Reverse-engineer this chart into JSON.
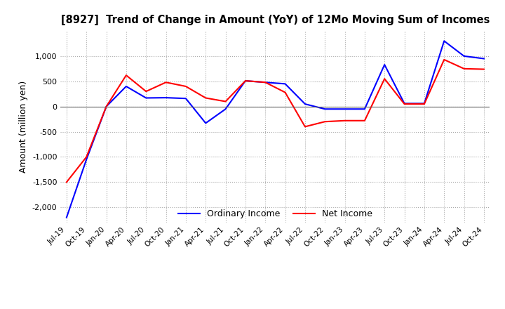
{
  "title": "[8927]  Trend of Change in Amount (YoY) of 12Mo Moving Sum of Incomes",
  "ylabel": "Amount (million yen)",
  "ylim": [
    -2300,
    1500
  ],
  "yticks": [
    -2000,
    -1500,
    -1000,
    -500,
    0,
    500,
    1000
  ],
  "legend_labels": [
    "Ordinary Income",
    "Net Income"
  ],
  "line_colors": [
    "#0000ff",
    "#ff0000"
  ],
  "background_color": "#ffffff",
  "grid_color": "#aaaaaa",
  "x_labels": [
    "Jul-19",
    "Oct-19",
    "Jan-20",
    "Apr-20",
    "Jul-20",
    "Oct-20",
    "Jan-21",
    "Apr-21",
    "Jul-21",
    "Oct-21",
    "Jan-22",
    "Apr-22",
    "Jul-22",
    "Oct-22",
    "Jan-23",
    "Apr-23",
    "Jul-23",
    "Oct-23",
    "Jan-24",
    "Apr-24",
    "Jul-24",
    "Oct-24"
  ],
  "ordinary_income": [
    -2200,
    -1050,
    0,
    400,
    170,
    175,
    160,
    -330,
    -50,
    510,
    480,
    450,
    50,
    -50,
    -50,
    -50,
    830,
    60,
    60,
    1300,
    1000,
    950
  ],
  "net_income": [
    -1500,
    -1000,
    0,
    620,
    300,
    480,
    400,
    170,
    100,
    510,
    480,
    280,
    -400,
    -300,
    -280,
    -280,
    550,
    50,
    50,
    930,
    750,
    740
  ]
}
